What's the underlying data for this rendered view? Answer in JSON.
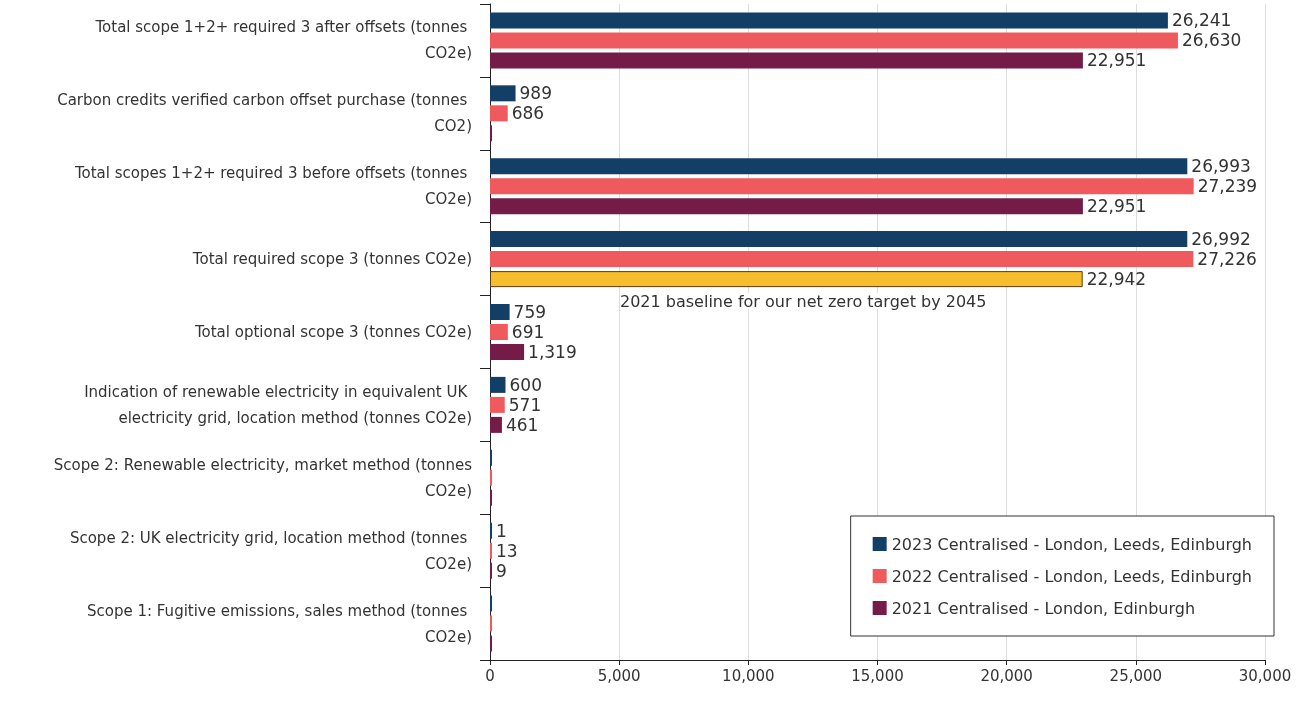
{
  "chart_data": {
    "type": "bar",
    "orientation": "horizontal",
    "categories": [
      "Total scope 1+2+ required 3 after offsets (tonnes CO2e)",
      "Carbon credits verified carbon offset purchase (tonnes CO2)",
      "Total scopes 1+2+ required 3 before offsets (tonnes CO2e)",
      "Total required scope 3 (tonnes CO2e)",
      "Total optional scope 3 (tonnes CO2e)",
      "Indication of renewable electricity in equivalent UK electricity grid, location method (tonnes CO2e)",
      "Scope 2: Renewable electricity, market method (tonnes CO2e)",
      "Scope 2: UK electricity grid, location method (tonnes CO2e)",
      "Scope 1: Fugitive emissions, sales method (tonnes CO2e)"
    ],
    "series": [
      {
        "name": "2023 Centralised - London, Leeds, Edinburgh",
        "color": "#133e65",
        "values": [
          26241,
          989,
          26993,
          26992,
          759,
          600,
          0,
          1,
          0
        ],
        "value_labels": [
          "26,241",
          "989",
          "26,993",
          "26,992",
          "759",
          "600",
          null,
          "1",
          null
        ]
      },
      {
        "name": "2022 Centralised - London, Leeds, Edinburgh",
        "color": "#ef5a5e",
        "values": [
          26630,
          686,
          27239,
          27226,
          691,
          571,
          0,
          13,
          0
        ],
        "value_labels": [
          "26,630",
          "686",
          "27,239",
          "27,226",
          "691",
          "571",
          null,
          "13",
          null
        ]
      },
      {
        "name": "2021 Centralised - London, Edinburgh",
        "color": "#741c47",
        "colors": [
          "#741c47",
          "#741c47",
          "#741c47",
          "#f6be2c",
          "#741c47",
          "#741c47",
          "#741c47",
          "#741c47",
          "#741c47"
        ],
        "values": [
          22951,
          0,
          22951,
          22942,
          1319,
          461,
          0,
          9,
          0
        ],
        "value_labels": [
          "22,951",
          null,
          "22,951",
          "22,942",
          "1,319",
          "461",
          null,
          "9",
          null
        ]
      }
    ],
    "xlim": [
      0,
      30000
    ],
    "xticks": [
      0,
      {
        "value": 5000,
        "label": "5,000"
      },
      {
        "value": 10000,
        "label": "10,000"
      },
      {
        "value": 15000,
        "label": "15,000"
      },
      {
        "value": 20000,
        "label": "20,000"
      },
      {
        "value": 25000,
        "label": "25,000"
      },
      {
        "value": 30000,
        "label": "30,000"
      }
    ],
    "grid": "x",
    "legend": "bottom right",
    "annotations": [
      "2021 baseline for our net zero target by 2045"
    ]
  }
}
